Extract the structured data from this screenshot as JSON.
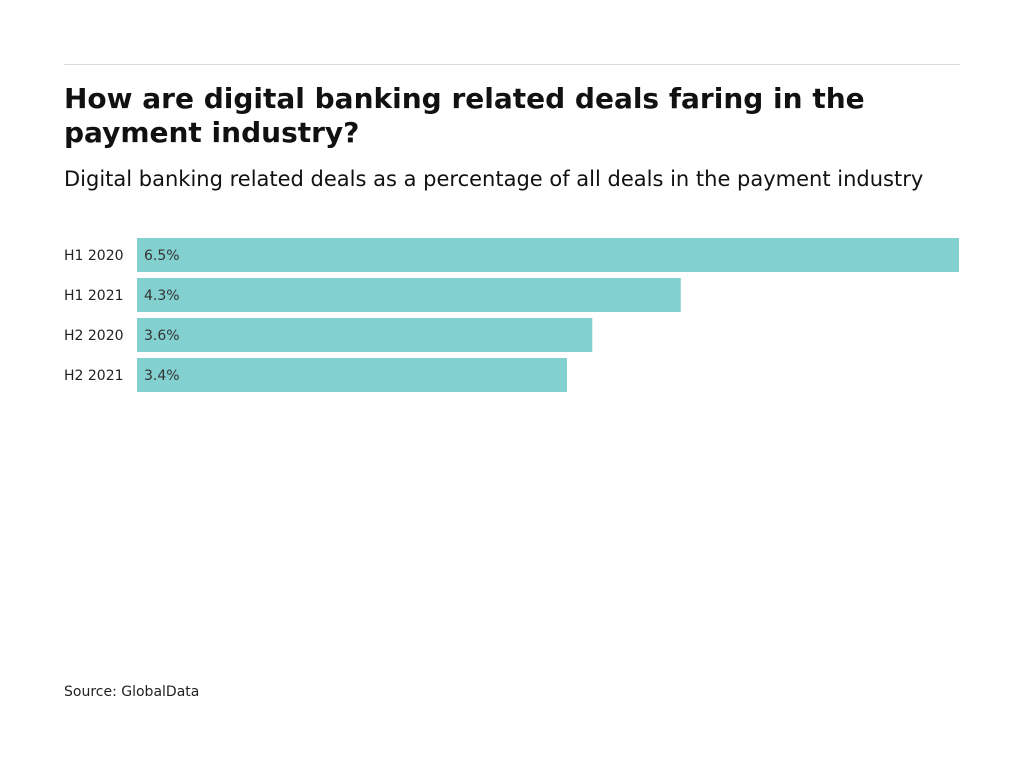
{
  "chart_data": {
    "type": "bar",
    "orientation": "horizontal",
    "title": "How are digital banking related deals faring in the payment industry?",
    "subtitle": "Digital banking related deals as a percentage of all deals in the payment industry",
    "categories": [
      "H1 2020",
      "H1 2021",
      "H2 2020",
      "H2 2021"
    ],
    "values": [
      6.5,
      4.3,
      3.6,
      3.4
    ],
    "value_labels": [
      "6.5%",
      "4.3%",
      "3.6%",
      "3.4%"
    ],
    "xlim": [
      0,
      6.5
    ],
    "xlabel": "",
    "ylabel": "",
    "grid": false,
    "legend": "none",
    "bar_color": "#82d0cf",
    "source": "Source: GlobalData"
  }
}
